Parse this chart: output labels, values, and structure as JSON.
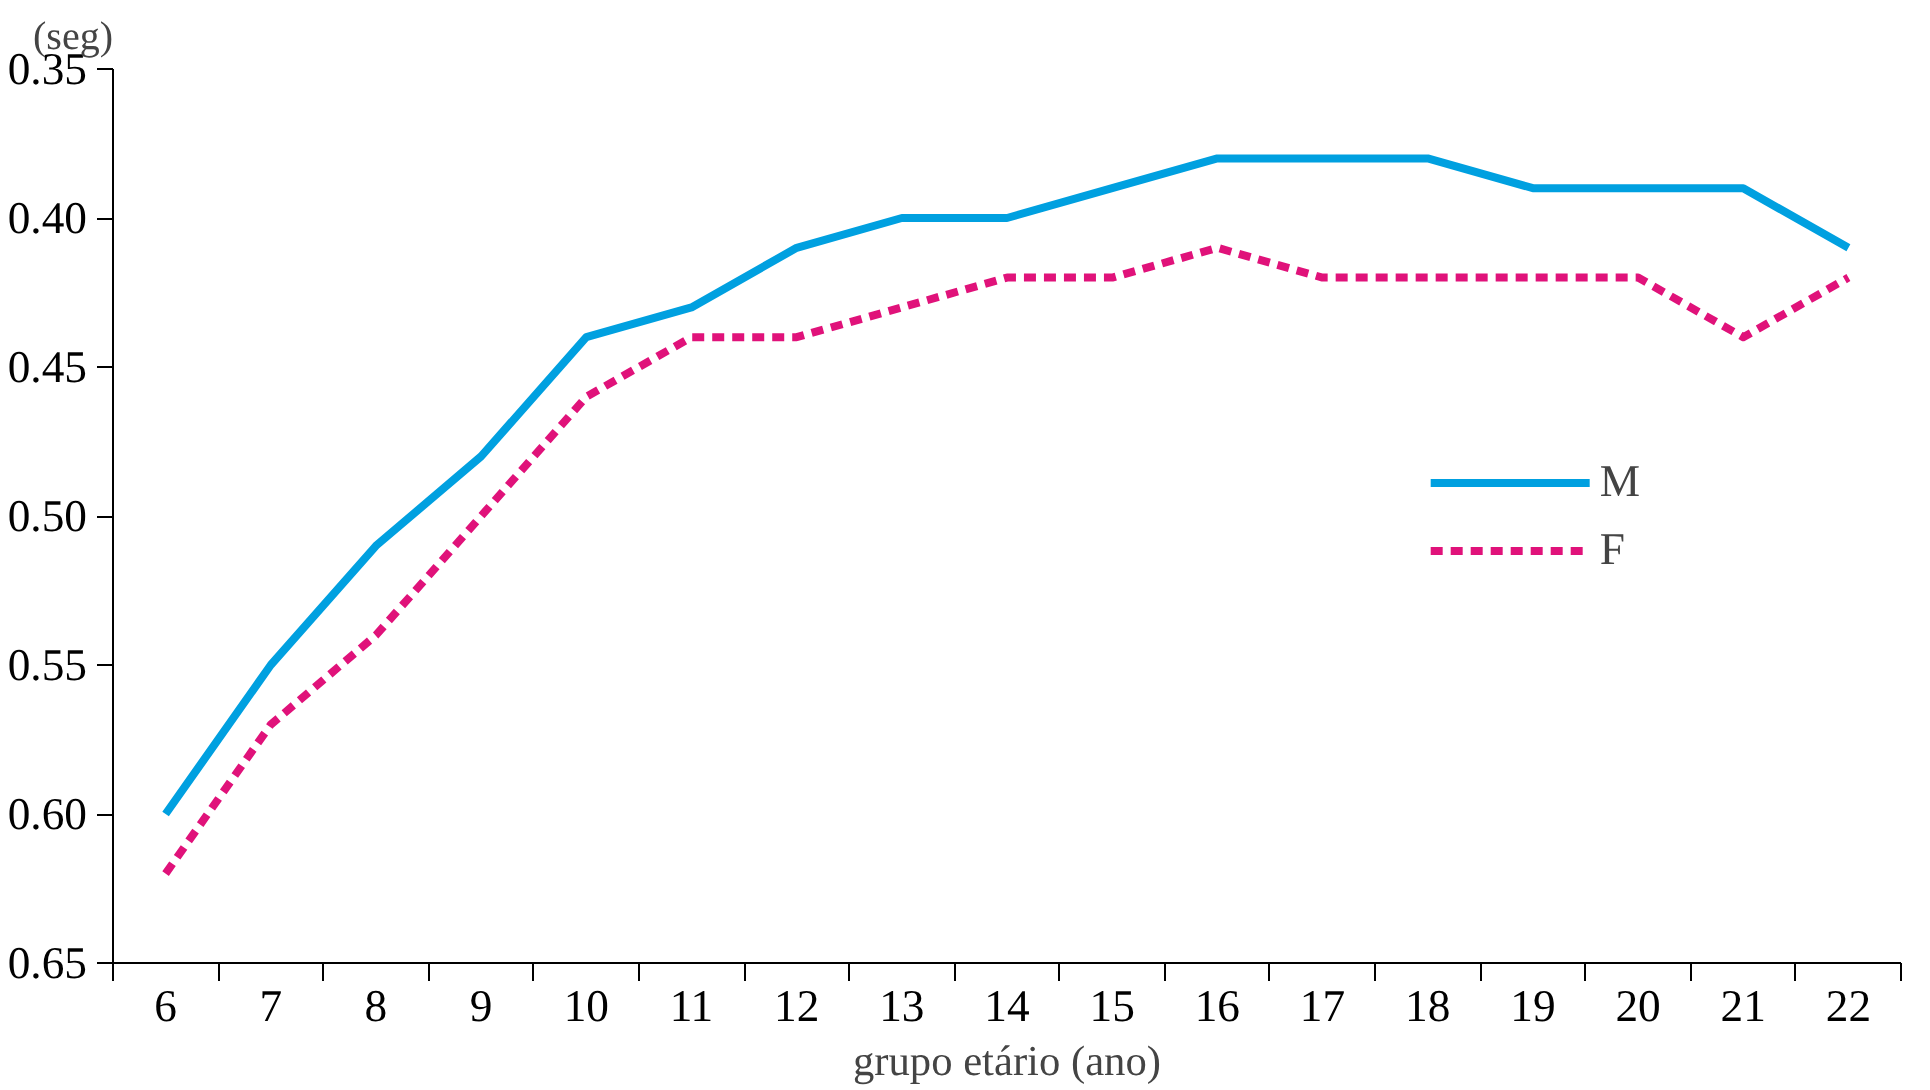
{
  "chart_data": {
    "type": "line",
    "ylabel": "(seg)",
    "xlabel": "grupo etário (ano)",
    "categories": [
      "6",
      "7",
      "8",
      "9",
      "10",
      "11",
      "12",
      "13",
      "14",
      "15",
      "16",
      "17",
      "18",
      "19",
      "20",
      "21",
      "22"
    ],
    "ylim": [
      0.65,
      0.35
    ],
    "yticks": [
      {
        "value": 0.35,
        "label": "0.35"
      },
      {
        "value": 0.4,
        "label": "0.40"
      },
      {
        "value": 0.45,
        "label": "0.45"
      },
      {
        "value": 0.5,
        "label": "0.50"
      },
      {
        "value": 0.55,
        "label": "0.55"
      },
      {
        "value": 0.6,
        "label": "0.60"
      },
      {
        "value": 0.65,
        "label": "0.65"
      }
    ],
    "series": [
      {
        "name": "M",
        "color": "#00a0e0",
        "line_style": "solid",
        "values": [
          0.6,
          0.55,
          0.51,
          0.48,
          0.44,
          0.43,
          0.41,
          0.4,
          0.4,
          0.39,
          0.38,
          0.38,
          0.38,
          0.39,
          0.39,
          0.39,
          0.41
        ]
      },
      {
        "name": "F",
        "color": "#e0127a",
        "line_style": "dashed",
        "values": [
          0.62,
          0.57,
          0.54,
          0.5,
          0.46,
          0.44,
          0.44,
          0.43,
          0.42,
          0.42,
          0.41,
          0.42,
          0.42,
          0.42,
          0.42,
          0.44,
          0.42
        ]
      }
    ],
    "grid": false,
    "legend": "right"
  }
}
